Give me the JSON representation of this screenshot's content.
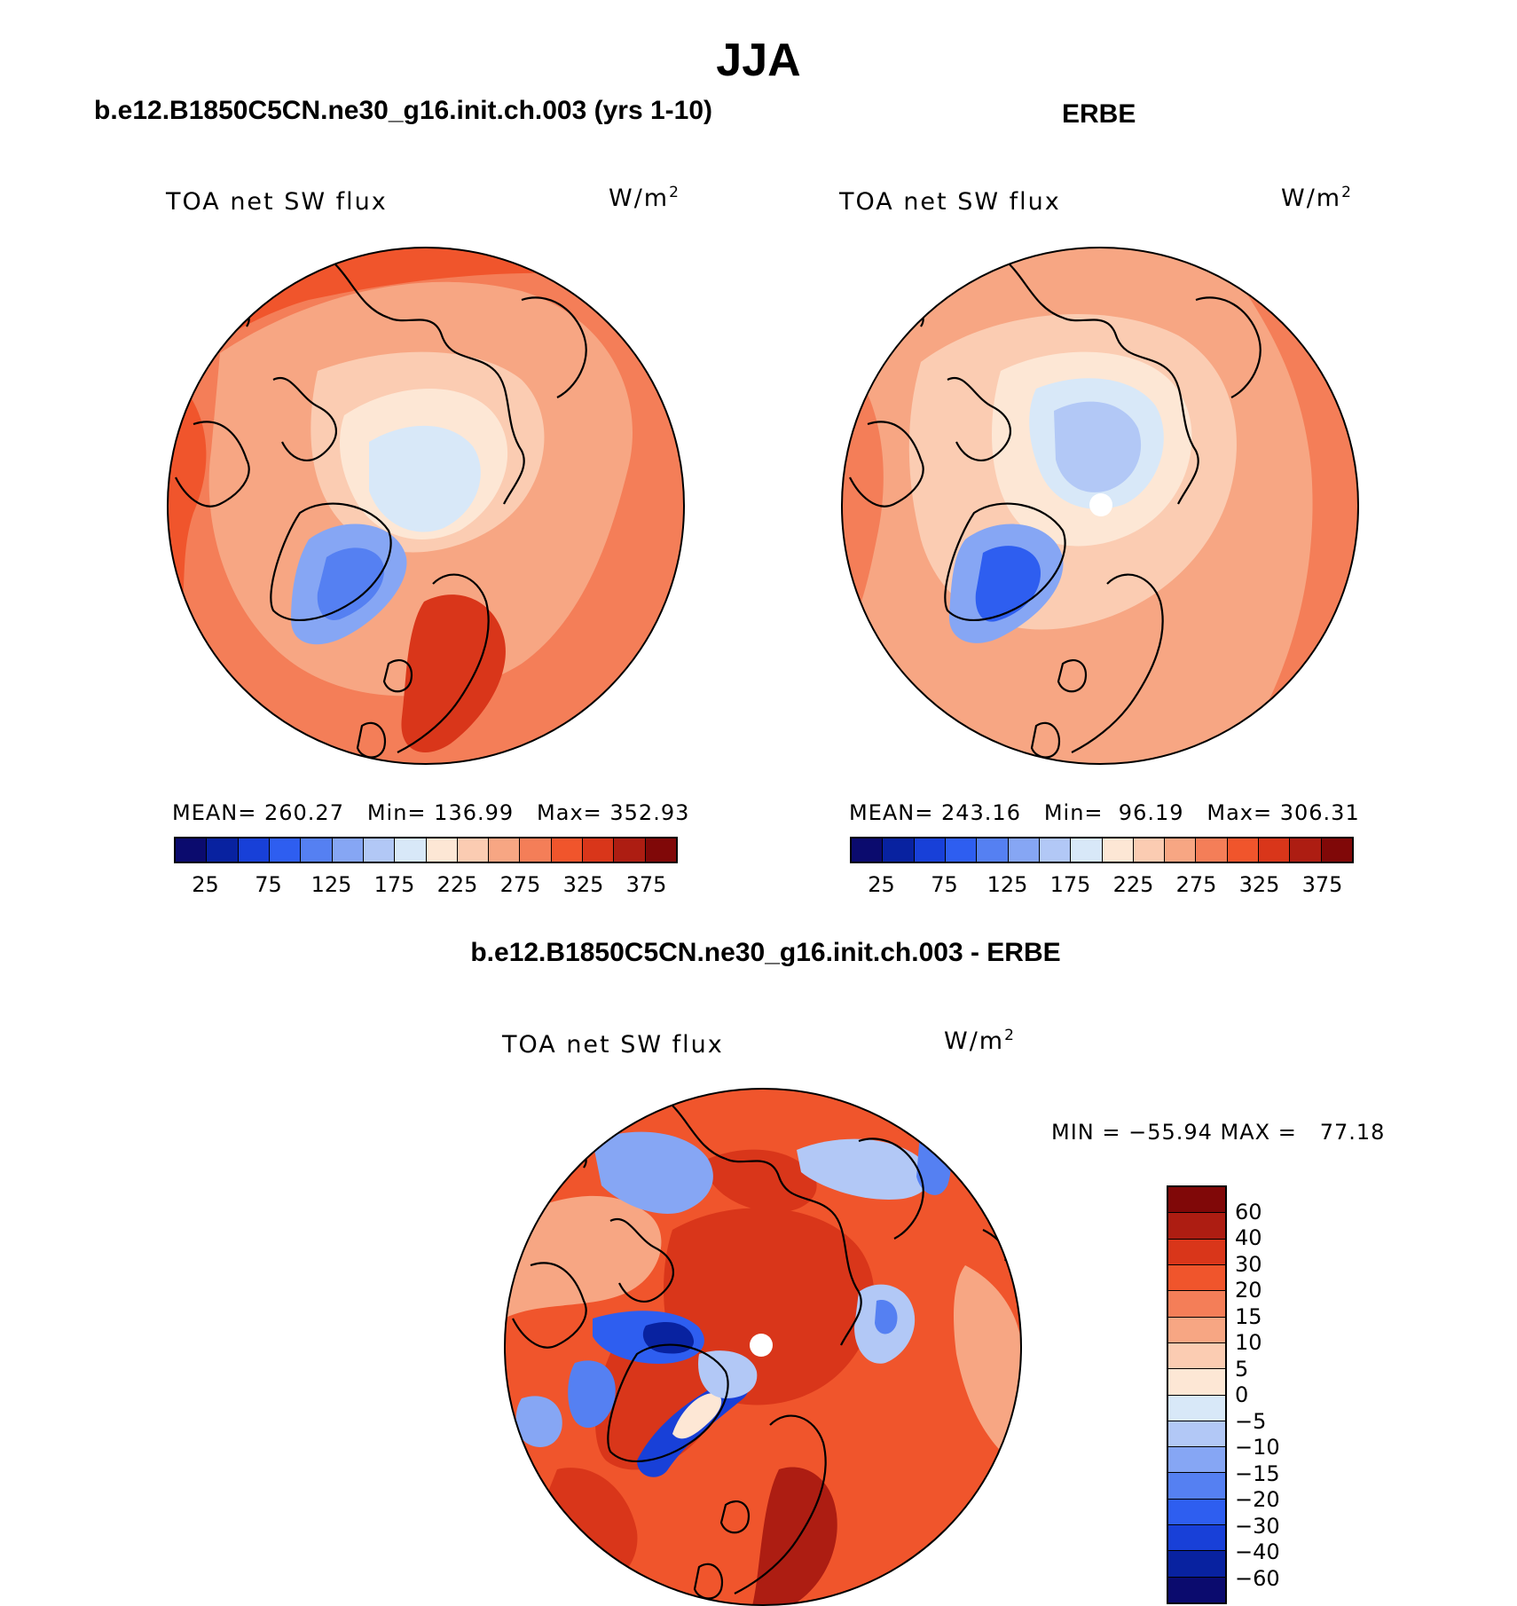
{
  "figure": {
    "title": "JJA",
    "unit": "W/m",
    "unit_exp": "2"
  },
  "panels": {
    "model": {
      "header": "b.e12.B1850C5CN.ne30_g16.init.ch.003 (yrs 1-10)",
      "variable": "TOA net SW flux",
      "stats": "MEAN= 260.27   Min= 136.99   Max= 352.93"
    },
    "obs": {
      "header": "ERBE",
      "variable": "TOA net SW flux",
      "stats": "MEAN= 243.16   Min=  96.19   Max= 306.31"
    },
    "diff": {
      "header": "b.e12.B1850C5CN.ne30_g16.init.ch.003 - ERBE",
      "variable": "TOA net SW flux",
      "stats": "MIN = −55.94 MAX =   77.18"
    }
  },
  "colorbars": {
    "absolute": {
      "colors": [
        "#0b0b6e",
        "#0822a0",
        "#1840d8",
        "#2e5ef0",
        "#5580f2",
        "#86a6f4",
        "#b2c8f6",
        "#d8e8f8",
        "#fde7d5",
        "#fbccb2",
        "#f7a683",
        "#f47e58",
        "#f0552c",
        "#d9361a",
        "#ad1d12",
        "#800808"
      ],
      "ticks": [
        "25",
        "75",
        "125",
        "175",
        "225",
        "275",
        "325",
        "375"
      ]
    },
    "difference": {
      "colors": [
        "#800808",
        "#ad1d12",
        "#d9361a",
        "#f0552c",
        "#f47e58",
        "#f7a683",
        "#fbccb2",
        "#fde7d5",
        "#d8e8f8",
        "#b2c8f6",
        "#86a6f4",
        "#5580f2",
        "#2e5ef0",
        "#1840d8",
        "#0822a0",
        "#0b0b6e"
      ],
      "ticks": [
        "60",
        "40",
        "30",
        "20",
        "15",
        "10",
        "5",
        "0",
        "−5",
        "−10",
        "−15",
        "−20",
        "−30",
        "−40",
        "−60"
      ]
    }
  }
}
